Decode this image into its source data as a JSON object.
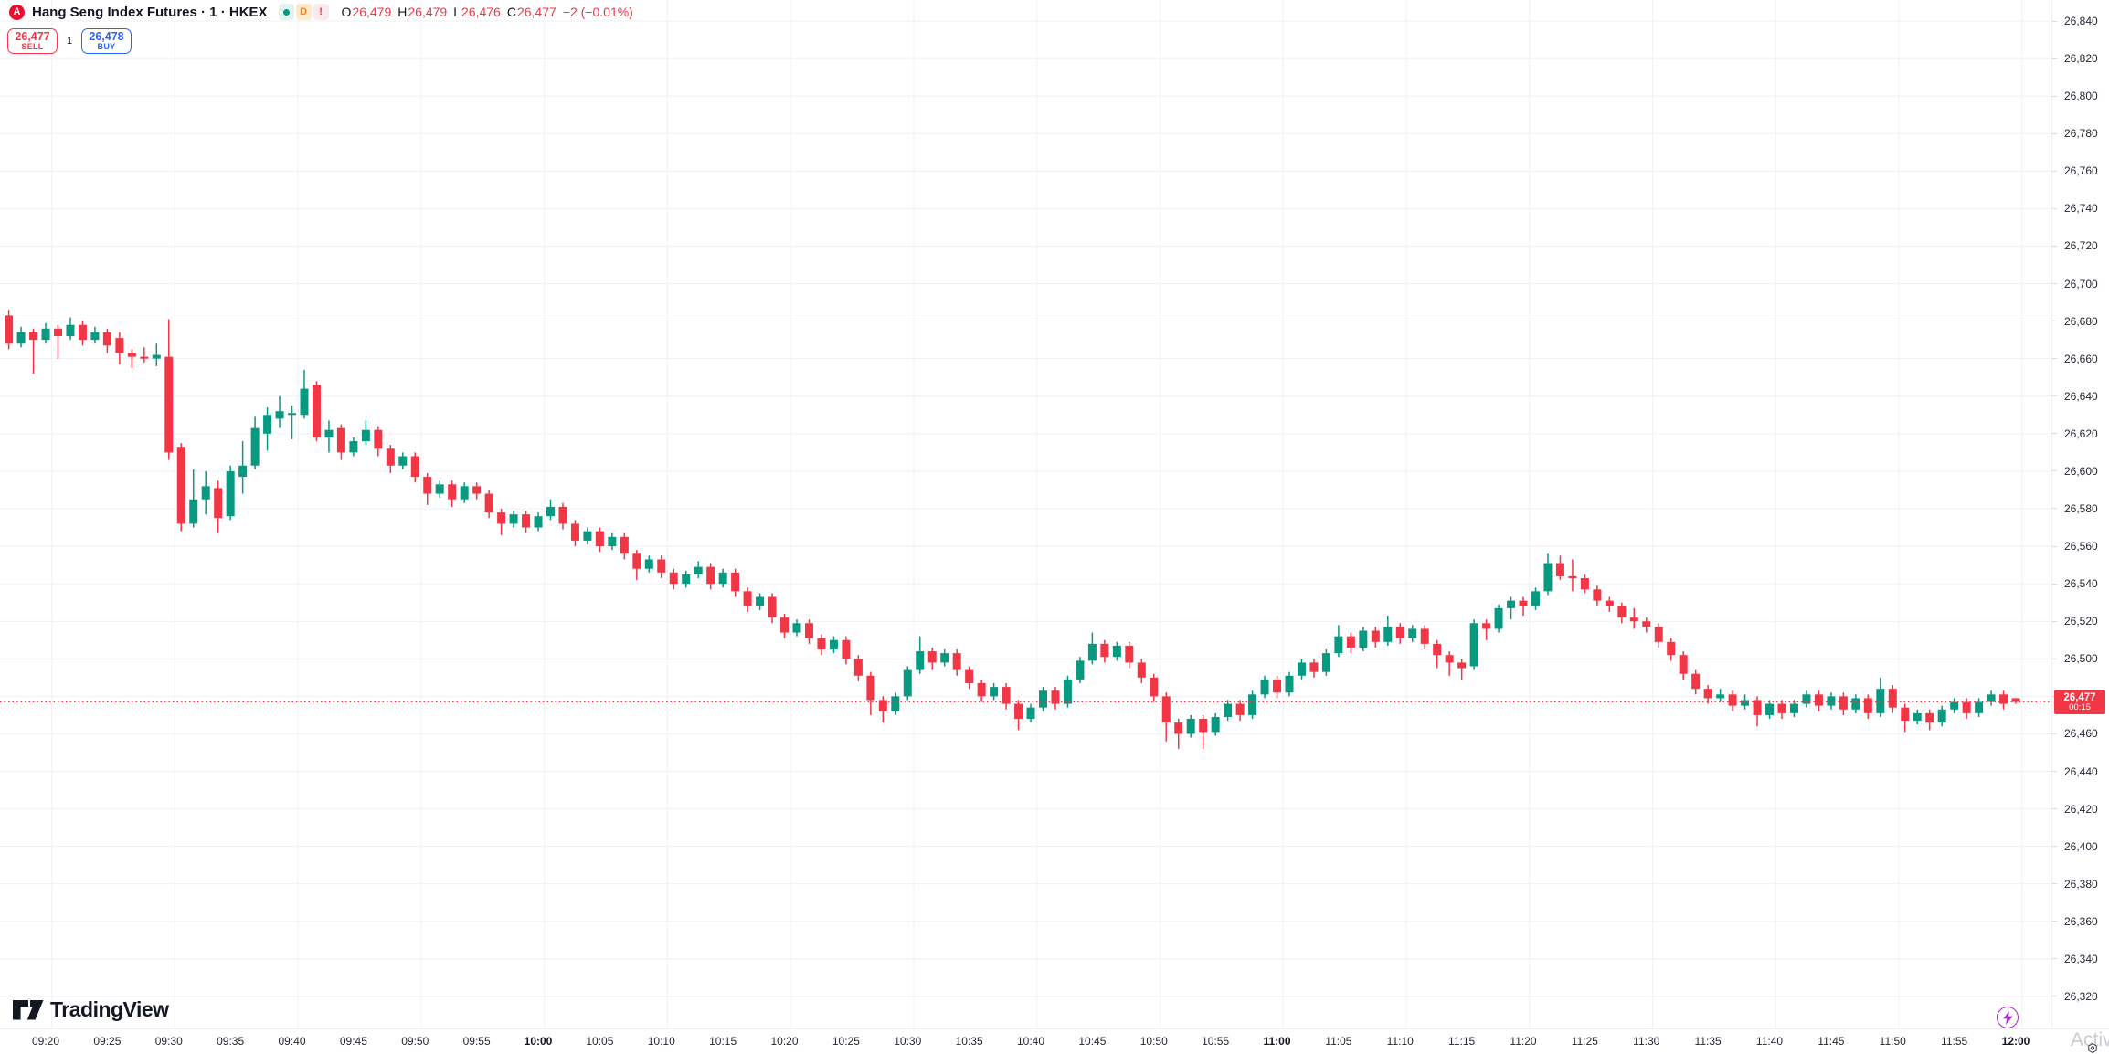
{
  "header": {
    "logo_glyph": "A",
    "title": "Hang Seng Index Futures · 1 · HKEX",
    "badges": {
      "interval": "D",
      "alert": "!"
    },
    "ohlc": {
      "o_label": "O",
      "o": "26,479",
      "h_label": "H",
      "h": "26,479",
      "l_label": "L",
      "l": "26,476",
      "c_label": "C",
      "c": "26,477",
      "change": "−2 (−0.01%)"
    }
  },
  "trade_panel": {
    "sell_price": "26,477",
    "sell_label": "SELL",
    "quantity": "1",
    "buy_price": "26,478",
    "buy_label": "BUY"
  },
  "price_axis": {
    "labels": [
      "26,840",
      "26,820",
      "26,800",
      "26,780",
      "26,760",
      "26,740",
      "26,720",
      "26,700",
      "26,680",
      "26,660",
      "26,640",
      "26,620",
      "26,600",
      "26,580",
      "26,560",
      "26,540",
      "26,520",
      "26,500",
      "26,480",
      "26,460",
      "26,440",
      "26,420",
      "26,400",
      "26,380",
      "26,360",
      "26,340",
      "26,320"
    ],
    "current": {
      "price": "26,477",
      "countdown": "00:15"
    }
  },
  "time_axis": {
    "labels": [
      {
        "t": "09:20",
        "bold": false
      },
      {
        "t": "09:25",
        "bold": false
      },
      {
        "t": "09:30",
        "bold": false
      },
      {
        "t": "09:35",
        "bold": false
      },
      {
        "t": "09:40",
        "bold": false
      },
      {
        "t": "09:45",
        "bold": false
      },
      {
        "t": "09:50",
        "bold": false
      },
      {
        "t": "09:55",
        "bold": false
      },
      {
        "t": "10:00",
        "bold": true
      },
      {
        "t": "10:05",
        "bold": false
      },
      {
        "t": "10:10",
        "bold": false
      },
      {
        "t": "10:15",
        "bold": false
      },
      {
        "t": "10:20",
        "bold": false
      },
      {
        "t": "10:25",
        "bold": false
      },
      {
        "t": "10:30",
        "bold": false
      },
      {
        "t": "10:35",
        "bold": false
      },
      {
        "t": "10:40",
        "bold": false
      },
      {
        "t": "10:45",
        "bold": false
      },
      {
        "t": "10:50",
        "bold": false
      },
      {
        "t": "10:55",
        "bold": false
      },
      {
        "t": "11:00",
        "bold": true
      },
      {
        "t": "11:05",
        "bold": false
      },
      {
        "t": "11:10",
        "bold": false
      },
      {
        "t": "11:15",
        "bold": false
      },
      {
        "t": "11:20",
        "bold": false
      },
      {
        "t": "11:25",
        "bold": false
      },
      {
        "t": "11:30",
        "bold": false
      },
      {
        "t": "11:35",
        "bold": false
      },
      {
        "t": "11:40",
        "bold": false
      },
      {
        "t": "11:45",
        "bold": false
      },
      {
        "t": "11:50",
        "bold": false
      },
      {
        "t": "11:55",
        "bold": false
      },
      {
        "t": "12:00",
        "bold": true
      }
    ]
  },
  "footer": {
    "logo_text": "TradingView"
  },
  "corner": {
    "watermark": "Activa"
  },
  "chart_data": {
    "type": "candlestick",
    "title": "Hang Seng Index Futures",
    "symbol_interval": "1",
    "exchange": "HKEX",
    "up_color": "#089981",
    "down_color": "#f23645",
    "grid": true,
    "ylim": [
      26303,
      26851
    ],
    "y_tick_step": 20,
    "x_start_time": "09:17",
    "x_end_time": "12:00",
    "x_step_minutes": 1,
    "current_price": 26477,
    "change": -2,
    "change_pct": -0.01,
    "candles_ohlc": [
      [
        26683,
        26686,
        26665,
        26668
      ],
      [
        26668,
        26677,
        26666,
        26674
      ],
      [
        26674,
        26676,
        26652,
        26670
      ],
      [
        26670,
        26679,
        26668,
        26676
      ],
      [
        26676,
        26678,
        26660,
        26672
      ],
      [
        26672,
        26682,
        26670,
        26678
      ],
      [
        26678,
        26680,
        26667,
        26670
      ],
      [
        26670,
        26677,
        26668,
        26674
      ],
      [
        26674,
        26676,
        26663,
        26667
      ],
      [
        26671,
        26674,
        26657,
        26663
      ],
      [
        26663,
        26665,
        26655,
        26661
      ],
      [
        26661,
        26666,
        26658,
        26660
      ],
      [
        26660,
        26668,
        26656,
        26662
      ],
      [
        26661,
        26681,
        26606,
        26610
      ],
      [
        26613,
        26615,
        26568,
        26572
      ],
      [
        26572,
        26601,
        26570,
        26585
      ],
      [
        26585,
        26600,
        26577,
        26592
      ],
      [
        26591,
        26595,
        26567,
        26575
      ],
      [
        26576,
        26603,
        26574,
        26600
      ],
      [
        26597,
        26616,
        26588,
        26603
      ],
      [
        26603,
        26629,
        26601,
        26623
      ],
      [
        26620,
        26634,
        26611,
        26630
      ],
      [
        26628,
        26640,
        26623,
        26632
      ],
      [
        26630,
        26635,
        26617,
        26631
      ],
      [
        26630,
        26654,
        26628,
        26644
      ],
      [
        26646,
        26648,
        26616,
        26618
      ],
      [
        26618,
        26627,
        26610,
        26622
      ],
      [
        26623,
        26625,
        26606,
        26610
      ],
      [
        26610,
        26618,
        26608,
        26616
      ],
      [
        26616,
        26627,
        26614,
        26622
      ],
      [
        26622,
        26624,
        26608,
        26612
      ],
      [
        26612,
        26614,
        26599,
        26603
      ],
      [
        26603,
        26610,
        26601,
        26608
      ],
      [
        26608,
        26610,
        26594,
        26597
      ],
      [
        26597,
        26599,
        26582,
        26588
      ],
      [
        26588,
        26595,
        26586,
        26593
      ],
      [
        26593,
        26595,
        26581,
        26585
      ],
      [
        26585,
        26594,
        26583,
        26592
      ],
      [
        26592,
        26594,
        26585,
        26588
      ],
      [
        26588,
        26590,
        26575,
        26578
      ],
      [
        26578,
        26580,
        26566,
        26572
      ],
      [
        26572,
        26579,
        26570,
        26577
      ],
      [
        26577,
        26579,
        26567,
        26570
      ],
      [
        26570,
        26578,
        26568,
        26576
      ],
      [
        26576,
        26585,
        26574,
        26581
      ],
      [
        26581,
        26583,
        26569,
        26572
      ],
      [
        26572,
        26574,
        26560,
        26563
      ],
      [
        26563,
        26570,
        26561,
        26568
      ],
      [
        26568,
        26570,
        26557,
        26560
      ],
      [
        26560,
        26567,
        26558,
        26565
      ],
      [
        26565,
        26567,
        26553,
        26556
      ],
      [
        26556,
        26558,
        26542,
        26548
      ],
      [
        26548,
        26555,
        26546,
        26553
      ],
      [
        26553,
        26555,
        26543,
        26546
      ],
      [
        26546,
        26548,
        26537,
        26540
      ],
      [
        26540,
        26547,
        26538,
        26545
      ],
      [
        26545,
        26552,
        26543,
        26549
      ],
      [
        26549,
        26551,
        26537,
        26540
      ],
      [
        26540,
        26548,
        26538,
        26546
      ],
      [
        26546,
        26548,
        26533,
        26536
      ],
      [
        26536,
        26538,
        26525,
        26528
      ],
      [
        26528,
        26535,
        26526,
        26533
      ],
      [
        26533,
        26535,
        26519,
        26522
      ],
      [
        26522,
        26524,
        26511,
        26514
      ],
      [
        26514,
        26521,
        26512,
        26519
      ],
      [
        26519,
        26521,
        26508,
        26511
      ],
      [
        26511,
        26513,
        26502,
        26505
      ],
      [
        26505,
        26512,
        26503,
        26510
      ],
      [
        26510,
        26512,
        26497,
        26500
      ],
      [
        26500,
        26502,
        26488,
        26491
      ],
      [
        26491,
        26493,
        26470,
        26478
      ],
      [
        26478,
        26480,
        26466,
        26472
      ],
      [
        26472,
        26482,
        26470,
        26480
      ],
      [
        26480,
        26496,
        26478,
        26494
      ],
      [
        26494,
        26512,
        26492,
        26504
      ],
      [
        26504,
        26506,
        26494,
        26498
      ],
      [
        26498,
        26505,
        26496,
        26503
      ],
      [
        26503,
        26505,
        26491,
        26494
      ],
      [
        26494,
        26496,
        26484,
        26487
      ],
      [
        26487,
        26489,
        26477,
        26480
      ],
      [
        26480,
        26487,
        26478,
        26485
      ],
      [
        26485,
        26487,
        26473,
        26476
      ],
      [
        26476,
        26478,
        26462,
        26468
      ],
      [
        26468,
        26476,
        26466,
        26474
      ],
      [
        26474,
        26485,
        26472,
        26483
      ],
      [
        26483,
        26485,
        26473,
        26476
      ],
      [
        26476,
        26491,
        26474,
        26489
      ],
      [
        26489,
        26501,
        26487,
        26499
      ],
      [
        26499,
        26514,
        26497,
        26508
      ],
      [
        26508,
        26510,
        26498,
        26501
      ],
      [
        26501,
        26509,
        26499,
        26507
      ],
      [
        26507,
        26509,
        26495,
        26498
      ],
      [
        26498,
        26500,
        26487,
        26490
      ],
      [
        26490,
        26492,
        26477,
        26480
      ],
      [
        26480,
        26482,
        26456,
        26466
      ],
      [
        26466,
        26468,
        26452,
        26460
      ],
      [
        26460,
        26470,
        26458,
        26468
      ],
      [
        26468,
        26470,
        26452,
        26461
      ],
      [
        26461,
        26471,
        26459,
        26469
      ],
      [
        26469,
        26478,
        26467,
        26476
      ],
      [
        26476,
        26478,
        26467,
        26470
      ],
      [
        26470,
        26483,
        26468,
        26481
      ],
      [
        26481,
        26491,
        26479,
        26489
      ],
      [
        26489,
        26491,
        26479,
        26482
      ],
      [
        26482,
        26493,
        26480,
        26491
      ],
      [
        26491,
        26500,
        26489,
        26498
      ],
      [
        26498,
        26500,
        26490,
        26493
      ],
      [
        26493,
        26505,
        26491,
        26503
      ],
      [
        26503,
        26518,
        26501,
        26512
      ],
      [
        26512,
        26514,
        26503,
        26506
      ],
      [
        26506,
        26517,
        26504,
        26515
      ],
      [
        26515,
        26517,
        26506,
        26509
      ],
      [
        26509,
        26523,
        26507,
        26517
      ],
      [
        26517,
        26519,
        26508,
        26511
      ],
      [
        26511,
        26518,
        26509,
        26516
      ],
      [
        26516,
        26518,
        26505,
        26508
      ],
      [
        26508,
        26510,
        26495,
        26502
      ],
      [
        26502,
        26504,
        26491,
        26498
      ],
      [
        26498,
        26500,
        26489,
        26495
      ],
      [
        26496,
        26521,
        26494,
        26519
      ],
      [
        26519,
        26521,
        26510,
        26516
      ],
      [
        26516,
        26529,
        26514,
        26527
      ],
      [
        26527,
        26533,
        26521,
        26531
      ],
      [
        26531,
        26533,
        26523,
        26528
      ],
      [
        26528,
        26538,
        26526,
        26536
      ],
      [
        26536,
        26556,
        26534,
        26551
      ],
      [
        26551,
        26555,
        26542,
        26544
      ],
      [
        26544,
        26553,
        26536,
        26543
      ],
      [
        26543,
        26545,
        26535,
        26537
      ],
      [
        26537,
        26539,
        26528,
        26531
      ],
      [
        26531,
        26533,
        26525,
        26528
      ],
      [
        26528,
        26530,
        26519,
        26522
      ],
      [
        26522,
        26527,
        26516,
        26520
      ],
      [
        26520,
        26522,
        26514,
        26517
      ],
      [
        26517,
        26519,
        26506,
        26509
      ],
      [
        26509,
        26511,
        26499,
        26502
      ],
      [
        26502,
        26504,
        26489,
        26492
      ],
      [
        26492,
        26494,
        26481,
        26484
      ],
      [
        26484,
        26486,
        26476,
        26479
      ],
      [
        26479,
        26484,
        26477,
        26481
      ],
      [
        26481,
        26483,
        26472,
        26475
      ],
      [
        26475,
        26481,
        26473,
        26478
      ],
      [
        26478,
        26480,
        26464,
        26470
      ],
      [
        26470,
        26478,
        26468,
        26476
      ],
      [
        26476,
        26478,
        26468,
        26471
      ],
      [
        26471,
        26478,
        26469,
        26476
      ],
      [
        26476,
        26483,
        26474,
        26481
      ],
      [
        26481,
        26483,
        26472,
        26475
      ],
      [
        26475,
        26482,
        26473,
        26480
      ],
      [
        26480,
        26482,
        26470,
        26473
      ],
      [
        26473,
        26481,
        26471,
        26479
      ],
      [
        26479,
        26481,
        26468,
        26471
      ],
      [
        26471,
        26490,
        26469,
        26484
      ],
      [
        26484,
        26486,
        26471,
        26474
      ],
      [
        26474,
        26476,
        26461,
        26467
      ],
      [
        26467,
        26473,
        26465,
        26471
      ],
      [
        26471,
        26473,
        26462,
        26466
      ],
      [
        26466,
        26475,
        26464,
        26473
      ],
      [
        26473,
        26479,
        26471,
        26477
      ],
      [
        26477,
        26479,
        26468,
        26471
      ],
      [
        26471,
        26479,
        26469,
        26477
      ],
      [
        26477,
        26483,
        26475,
        26481
      ],
      [
        26481,
        26483,
        26473,
        26476
      ],
      [
        26479,
        26479,
        26476,
        26477
      ]
    ]
  }
}
